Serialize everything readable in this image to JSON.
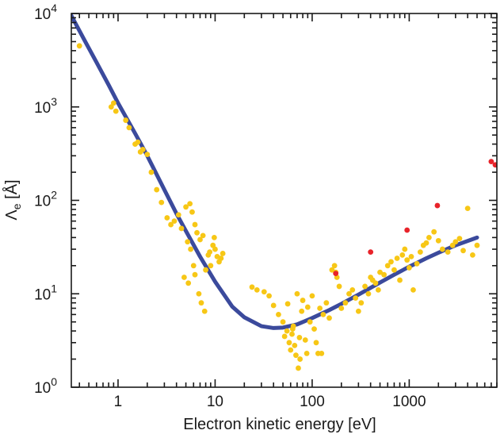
{
  "chart_data": {
    "type": "scatter",
    "xlabel": "Electron kinetic energy [eV]",
    "ylabel_main": "Λ",
    "ylabel_sub": "e",
    "ylabel_unit": " [Å]",
    "x_scale": "log",
    "y_scale": "log",
    "xlim": [
      0.33,
      8000
    ],
    "ylim": [
      1,
      10000
    ],
    "grid": false,
    "x_ticks": [
      {
        "value": 1,
        "label": "1"
      },
      {
        "value": 10,
        "label": "10"
      },
      {
        "value": 100,
        "label": "100"
      },
      {
        "value": 1000,
        "label": "1000"
      }
    ],
    "y_ticks": [
      {
        "value": 1,
        "base": "10",
        "exp": "0"
      },
      {
        "value": 10,
        "base": "10",
        "exp": "1"
      },
      {
        "value": 100,
        "base": "10",
        "exp": "2"
      },
      {
        "value": 1000,
        "base": "10",
        "exp": "3"
      },
      {
        "value": 10000,
        "base": "10",
        "exp": "4"
      }
    ],
    "colors": {
      "curve": "#3b4a9c",
      "points_main": "#f7c716",
      "points_highlight": "#e8232a",
      "axis": "#1a1a1a"
    },
    "series": [
      {
        "kind": "curve",
        "x": [
          0.33,
          0.45,
          0.6,
          0.8,
          1,
          1.5,
          2,
          3,
          4,
          5,
          7,
          10,
          15,
          20,
          30,
          40,
          50,
          70,
          100,
          150,
          200,
          300,
          500,
          700,
          1000,
          1500,
          2000,
          3000,
          5000
        ],
        "y": [
          9500,
          5200,
          3000,
          1720,
          1100,
          520,
          300,
          130,
          72,
          47,
          25,
          13.5,
          7.3,
          5.6,
          4.5,
          4.3,
          4.35,
          4.7,
          5.5,
          6.7,
          7.8,
          9.8,
          13.2,
          16,
          19.5,
          24,
          27.5,
          33,
          40
        ]
      },
      {
        "kind": "points",
        "color_key": "points_main",
        "x": [
          0.4,
          0.85,
          0.9,
          0.95,
          1.2,
          1.3,
          1.5,
          1.6,
          1.7,
          1.8,
          2,
          2.2,
          2.5,
          2.8,
          3.2,
          3.5,
          3.8,
          4.2,
          4.5,
          5,
          5.2,
          5.5,
          5.6,
          5.8,
          6,
          6.2,
          6.5,
          7,
          7.5,
          8,
          8.5,
          9,
          9.5,
          10,
          10.5,
          11,
          12,
          4.8,
          5.3,
          6.8,
          7.2,
          7.8,
          8.8,
          9.8,
          11.5,
          6.2,
          24,
          27,
          32,
          36,
          40,
          45,
          50,
          52,
          55,
          58,
          60,
          62,
          64,
          66,
          68,
          70,
          72,
          75,
          78,
          80,
          85,
          90,
          95,
          100,
          105,
          110,
          120,
          130,
          140,
          150,
          160,
          170,
          175,
          180,
          190,
          200,
          220,
          240,
          260,
          280,
          300,
          320,
          350,
          380,
          400,
          420,
          450,
          480,
          500,
          550,
          600,
          650,
          700,
          750,
          800,
          850,
          900,
          950,
          1000,
          1050,
          1100,
          1200,
          1300,
          1400,
          1500,
          1600,
          1800,
          2000,
          2200,
          2500,
          2800,
          3000,
          3300,
          3600,
          4000,
          4500,
          5000,
          56,
          63,
          74,
          88,
          115,
          125
        ],
        "y": [
          4500,
          1000,
          1100,
          900,
          720,
          600,
          400,
          420,
          330,
          350,
          310,
          200,
          130,
          95,
          65,
          55,
          60,
          70,
          50,
          85,
          36,
          92,
          30,
          75,
          20,
          55,
          45,
          38,
          42,
          18,
          26,
          20,
          33,
          30,
          25,
          22,
          27,
          15,
          13,
          10,
          8,
          6.5,
          28,
          40,
          24,
          16,
          11.8,
          11,
          10.5,
          9.5,
          7.5,
          6,
          5,
          3.5,
          4,
          3,
          2.5,
          3.7,
          4.5,
          2.8,
          2.2,
          10,
          1.6,
          2,
          6.5,
          8.5,
          3.2,
          7.2,
          5,
          9.5,
          4.2,
          3,
          7,
          6,
          8,
          5.5,
          18,
          20,
          17,
          15,
          12,
          7,
          8,
          10,
          11,
          9,
          6.5,
          8,
          12,
          10,
          15,
          14,
          13,
          11,
          17,
          16,
          20,
          22,
          18,
          24,
          14,
          26,
          30,
          23,
          19,
          25,
          11,
          21,
          28,
          33,
          35,
          40,
          46,
          37,
          30,
          28,
          33,
          36,
          39,
          29,
          82,
          26,
          33,
          7.8,
          4.2,
          3.4,
          2.3,
          2.3,
          2.3
        ]
      },
      {
        "kind": "points",
        "color_key": "points_highlight",
        "x": [
          175,
          400,
          950,
          1950,
          7000,
          7700
        ],
        "y": [
          16.5,
          28,
          48,
          88,
          260,
          240
        ]
      }
    ]
  }
}
